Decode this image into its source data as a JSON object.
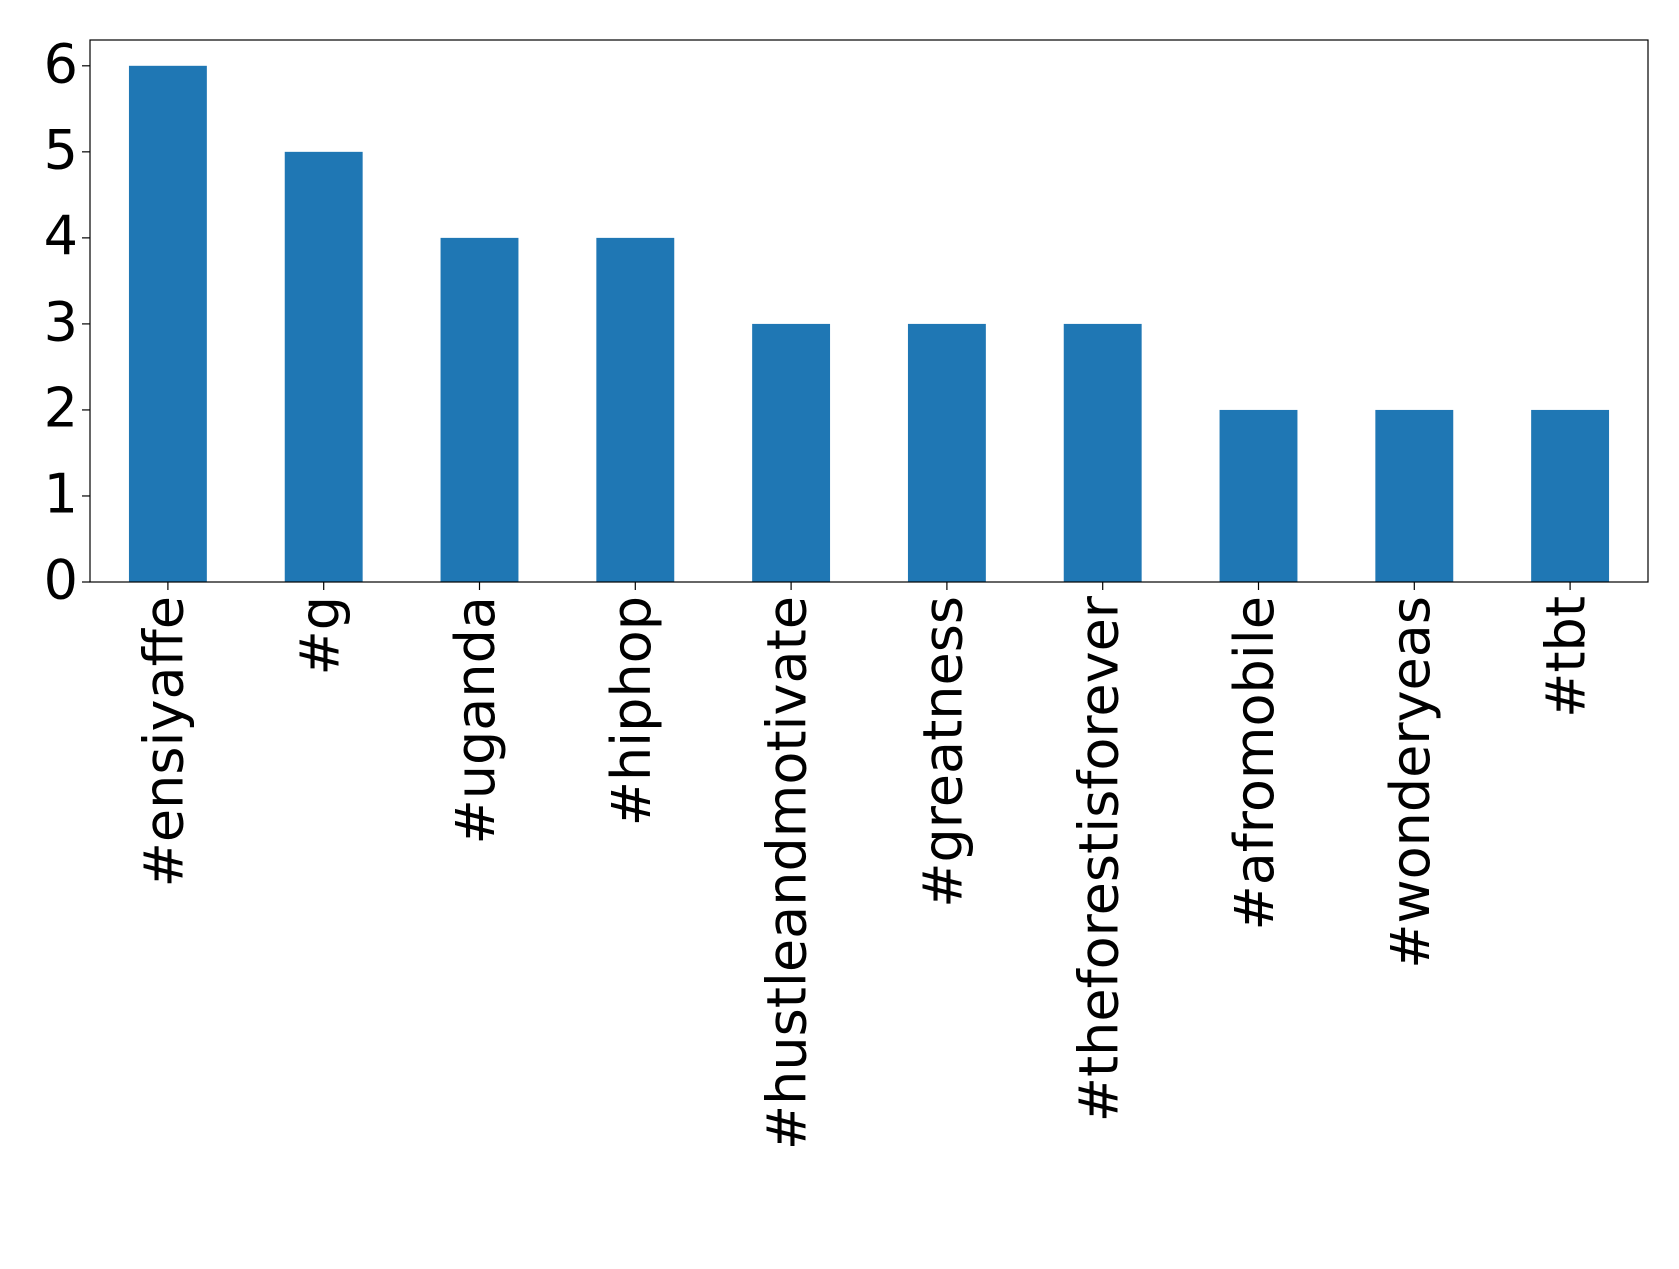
{
  "chart_data": {
    "type": "bar",
    "categories": [
      "#ensiyaffe",
      "#g",
      "#uganda",
      "#hiphop",
      "#hustleandmotivate",
      "#greatness",
      "#theforestisforever",
      "#afromobile",
      "#wonderyeas",
      "#tbt"
    ],
    "values": [
      6,
      5,
      4,
      4,
      3,
      3,
      3,
      2,
      2,
      2
    ],
    "color": "#1f77b4",
    "ylim": [
      0,
      6.3
    ],
    "yticks": [
      0,
      1,
      2,
      3,
      4,
      5,
      6
    ],
    "grid": false
  }
}
